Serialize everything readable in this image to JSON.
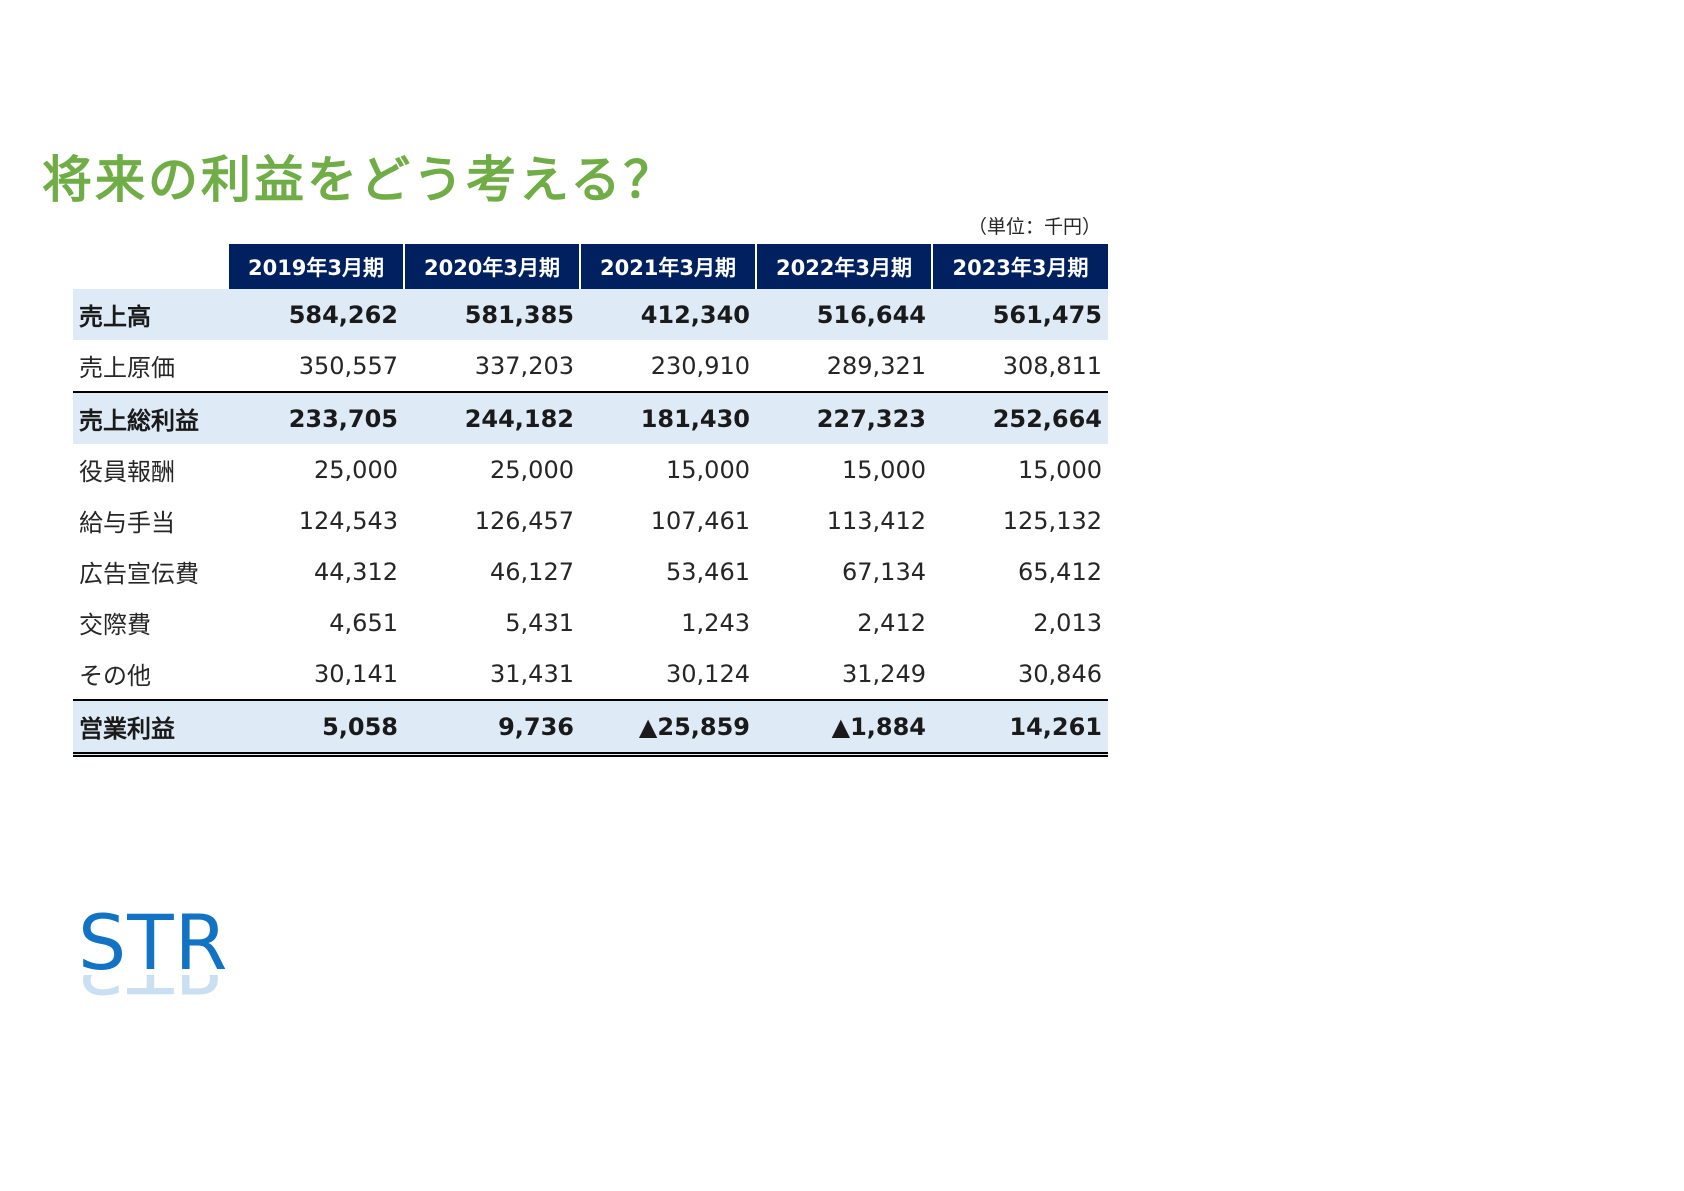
{
  "title": "将来の利益をどう考える？",
  "unit_note": "（単位：千円）",
  "table": {
    "columns": [
      "2019年3月期",
      "2020年3月期",
      "2021年3月期",
      "2022年3月期",
      "2023年3月期"
    ],
    "rows": [
      {
        "label": "売上高",
        "values": [
          "584,262",
          "581,385",
          "412,340",
          "516,644",
          "561,475"
        ]
      },
      {
        "label": "売上原価",
        "values": [
          "350,557",
          "337,203",
          "230,910",
          "289,321",
          "308,811"
        ]
      },
      {
        "label": "売上総利益",
        "values": [
          "233,705",
          "244,182",
          "181,430",
          "227,323",
          "252,664"
        ]
      },
      {
        "label": "役員報酬",
        "values": [
          "25,000",
          "25,000",
          "15,000",
          "15,000",
          "15,000"
        ]
      },
      {
        "label": "給与手当",
        "values": [
          "124,543",
          "126,457",
          "107,461",
          "113,412",
          "125,132"
        ]
      },
      {
        "label": "広告宣伝費",
        "values": [
          "44,312",
          "46,127",
          "53,461",
          "67,134",
          "65,412"
        ]
      },
      {
        "label": "交際費",
        "values": [
          "4,651",
          "5,431",
          "1,243",
          "2,412",
          "2,013"
        ]
      },
      {
        "label": "その他",
        "values": [
          "30,141",
          "31,431",
          "30,124",
          "31,249",
          "30,846"
        ]
      },
      {
        "label": "営業利益",
        "values": [
          "5,058",
          "9,736",
          "▲25,859",
          "▲1,884",
          "14,261"
        ]
      }
    ]
  },
  "logo": {
    "text": "STR"
  },
  "colors": {
    "title": "#70ad47",
    "header_bg": "#002060",
    "highlight_bg": "#deebf7",
    "logo": "#1272c4"
  }
}
